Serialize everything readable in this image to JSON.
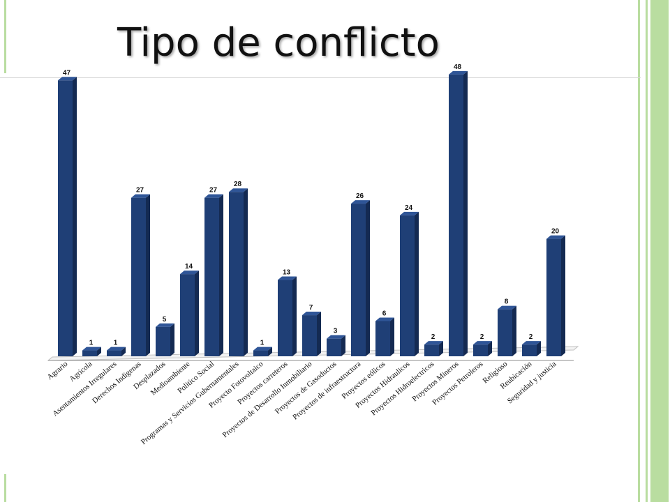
{
  "slide": {
    "title": "Tipo de conflicto"
  },
  "theme": {
    "accent": "#b9dda0",
    "bar_front": "#1f3f76",
    "bar_side": "#142a52",
    "bar_top": "#2f5597"
  },
  "chart_data": {
    "type": "bar",
    "title": "",
    "xlabel": "",
    "ylabel": "",
    "ylim": [
      0,
      50
    ],
    "grid": false,
    "categories": [
      "Agrario",
      "Agricola",
      "Asentamientos Irregulares",
      "Derechos Indigenas",
      "Desplazados",
      "Medioambiente",
      "Politico Social",
      "Programas y Servicios Gubernamentales",
      "Proyecto Fotovoltaico",
      "Proyectos carreteros",
      "Proyectos de Desarrollo Inmobiliario",
      "Proyectos de Gasoductos",
      "Proyectos de infraestructura",
      "Proyectos eólicos",
      "Proyectos Hidraulicos",
      "Proyectos Hidroelectricos",
      "Proyectos Mineros",
      "Proyectos Petroleros",
      "Religioso",
      "Reubicación",
      "Seguridad y justicia"
    ],
    "values": [
      47,
      1,
      1,
      27,
      5,
      14,
      27,
      28,
      1,
      13,
      7,
      3,
      26,
      6,
      24,
      2,
      48,
      2,
      8,
      2,
      20
    ]
  }
}
